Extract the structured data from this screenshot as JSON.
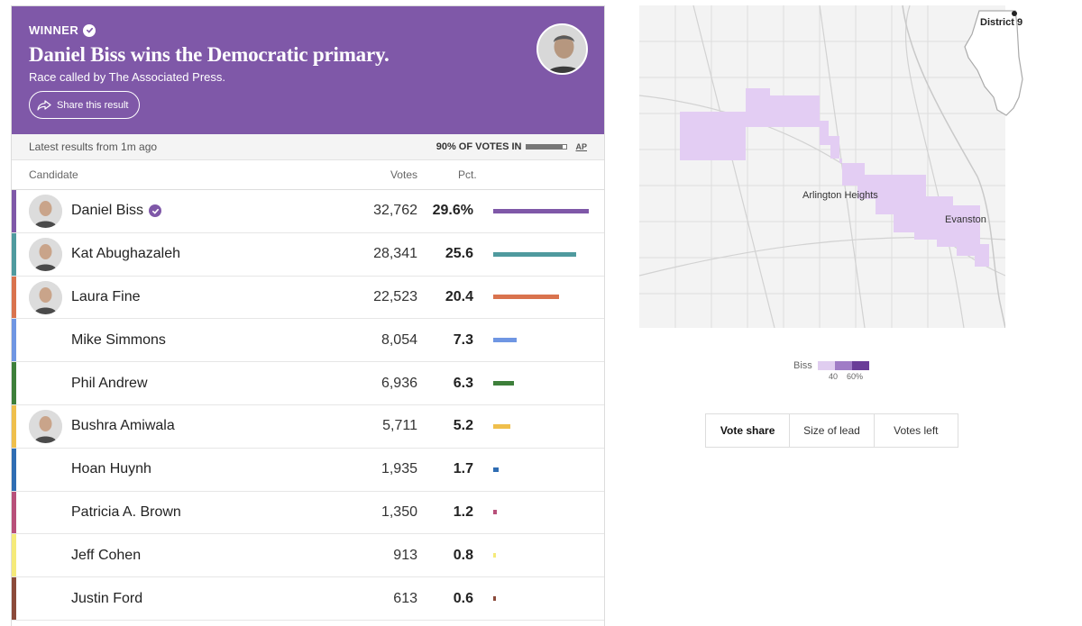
{
  "banner": {
    "winner_label": "WINNER",
    "headline": "Daniel Biss wins the Democratic primary.",
    "called_by": "Race called by The Associated Press.",
    "share_label": "Share this result",
    "brand_color": "#7f58a8"
  },
  "status": {
    "latest": "Latest results from 1m ago",
    "votes_in": "90% OF VOTES IN",
    "votes_in_fraction": 0.9,
    "source": "AP"
  },
  "columns": {
    "candidate": "Candidate",
    "votes": "Votes",
    "pct": "Pct."
  },
  "candidates": [
    {
      "name": "Daniel Biss",
      "votes": "32,762",
      "pct": "29.6%",
      "pct_value": 29.6,
      "color": "#7f58a8",
      "winner": true,
      "photo": true
    },
    {
      "name": "Kat Abughazaleh",
      "votes": "28,341",
      "pct": "25.6",
      "pct_value": 25.6,
      "color": "#4f9a9e",
      "winner": false,
      "photo": true
    },
    {
      "name": "Laura Fine",
      "votes": "22,523",
      "pct": "20.4",
      "pct_value": 20.4,
      "color": "#d9734e",
      "winner": false,
      "photo": true
    },
    {
      "name": "Mike Simmons",
      "votes": "8,054",
      "pct": "7.3",
      "pct_value": 7.3,
      "color": "#6f96e3",
      "winner": false,
      "photo": false
    },
    {
      "name": "Phil Andrew",
      "votes": "6,936",
      "pct": "6.3",
      "pct_value": 6.3,
      "color": "#3d7f3a",
      "winner": false,
      "photo": false
    },
    {
      "name": "Bushra Amiwala",
      "votes": "5,711",
      "pct": "5.2",
      "pct_value": 5.2,
      "color": "#efbf4c",
      "winner": false,
      "photo": true
    },
    {
      "name": "Hoan Huynh",
      "votes": "1,935",
      "pct": "1.7",
      "pct_value": 1.7,
      "color": "#2f6db3",
      "winner": false,
      "photo": false
    },
    {
      "name": "Patricia A. Brown",
      "votes": "1,350",
      "pct": "1.2",
      "pct_value": 1.2,
      "color": "#b8507a",
      "winner": false,
      "photo": false
    },
    {
      "name": "Jeff Cohen",
      "votes": "913",
      "pct": "0.8",
      "pct_value": 0.8,
      "color": "#f5ea7a",
      "winner": false,
      "photo": false
    },
    {
      "name": "Justin Ford",
      "votes": "613",
      "pct": "0.6",
      "pct_value": 0.6,
      "color": "#8b4a3a",
      "winner": false,
      "photo": false
    }
  ],
  "map": {
    "labels": {
      "arlington": "Arlington Heights",
      "evanston": "Evanston"
    },
    "district": "District 9",
    "legend_title": "Biss",
    "legend_ticks": [
      "40",
      "60%"
    ],
    "legend_colors": [
      "#e0cdf0",
      "#a07cc6",
      "#6a3d98"
    ],
    "fill_color": "#e3cdf3"
  },
  "tabs": [
    {
      "label": "Vote share",
      "active": true
    },
    {
      "label": "Size of lead",
      "active": false
    },
    {
      "label": "Votes left",
      "active": false
    }
  ]
}
